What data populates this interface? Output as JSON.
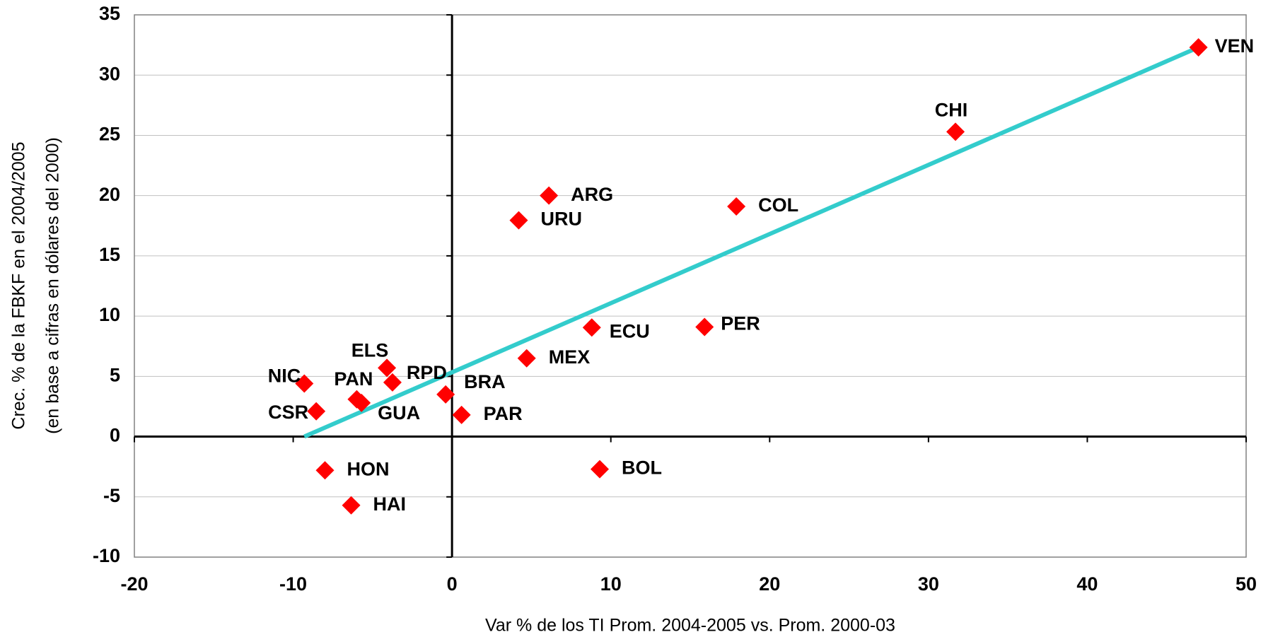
{
  "chart_data": {
    "type": "scatter",
    "x_label": "Var % de los TI  Prom. 2004-2005 vs. Prom. 2000-03",
    "y_label": [
      "Crec. % de la FBKF en el 2004/2005",
      "(en base a cifras en dólares del 2000)"
    ],
    "point_labels": [
      "VEN",
      "CHI",
      "COL",
      "ARG",
      "URU",
      "PER",
      "ECU",
      "MEX",
      "BRA",
      "PAR",
      "BOL",
      "HON",
      "HAI",
      "NIC",
      "CSR",
      "PAN",
      "GUA",
      "ELS",
      "RPD"
    ],
    "x": [
      47.0,
      31.7,
      17.9,
      6.1,
      4.2,
      15.9,
      8.8,
      4.7,
      -0.4,
      0.6,
      9.3,
      -8.0,
      -6.35,
      -9.3,
      -8.55,
      -6.0,
      -5.7,
      -4.1,
      -3.75
    ],
    "y": [
      32.3,
      25.3,
      19.1,
      20.0,
      17.95,
      9.1,
      9.05,
      6.5,
      3.5,
      1.8,
      -2.7,
      -2.8,
      -5.7,
      4.4,
      2.1,
      3.1,
      2.8,
      5.7,
      4.5
    ],
    "color": "#ff0000",
    "trendline": {
      "x": [
        -9.3,
        47.0
      ],
      "y": [
        0,
        32.3
      ],
      "color": "#33cccc"
    },
    "xlim": [
      -20,
      50
    ],
    "xticks": [
      -20,
      -10,
      0,
      10,
      20,
      30,
      40,
      50
    ],
    "ylim": [
      -10,
      35
    ],
    "yticks": [
      -10,
      -5,
      0,
      5,
      10,
      15,
      20,
      25,
      30,
      35
    ],
    "grid": true
  }
}
